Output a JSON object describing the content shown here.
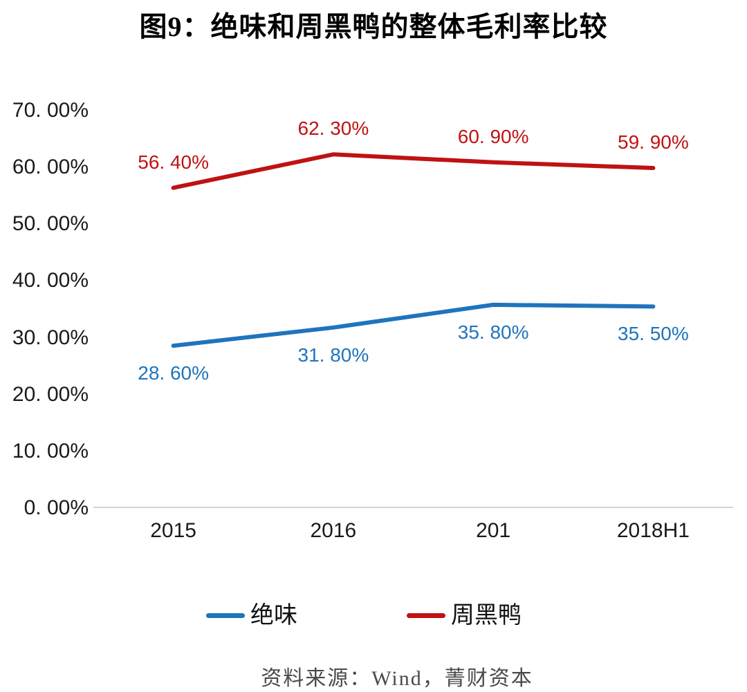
{
  "title": "图9：绝味和周黑鸭的整体毛利率比较",
  "source": "资料来源：Wind，菁财资本",
  "colors": {
    "juewei_blue": "#1F74BC",
    "zhouheiya_red": "#C01212",
    "axis_line": "#D2D2D2",
    "tick_text": "#1A1A1A",
    "source_text": "#4A4A4A"
  },
  "y_axis": {
    "ticks": [
      70,
      60,
      50,
      40,
      30,
      20,
      10,
      0
    ],
    "tick_labels": [
      "70. 00%",
      "60. 00%",
      "50. 00%",
      "40. 00%",
      "30. 00%",
      "20. 00%",
      "10. 00%",
      "0. 00%"
    ]
  },
  "x_axis": {
    "labels": [
      "2015",
      "2016",
      "201",
      "2018H1"
    ]
  },
  "legend": [
    {
      "name": "绝味",
      "color": "#1F74BC"
    },
    {
      "name": "周黑鸭",
      "color": "#C01212"
    }
  ],
  "chart_data": {
    "type": "line",
    "title": "图9：绝味和周黑鸭的整体毛利率比较",
    "categories": [
      "2015",
      "2016",
      "201",
      "2018H1"
    ],
    "series": [
      {
        "name": "绝味",
        "color": "#1F74BC",
        "values": [
          28.6,
          31.8,
          35.8,
          35.5
        ],
        "labels": [
          "28. 60%",
          "31. 80%",
          "35. 80%",
          "35. 50%"
        ],
        "label_side": "below"
      },
      {
        "name": "周黑鸭",
        "color": "#C01212",
        "values": [
          56.4,
          62.3,
          60.9,
          59.9
        ],
        "labels": [
          "56. 40%",
          "62. 30%",
          "60. 90%",
          "59. 90%"
        ],
        "label_side": "above"
      }
    ],
    "ylim": [
      0,
      70
    ],
    "y_tick_step": 10,
    "grid": false,
    "legend_position": "bottom",
    "source": "资料来源：Wind，菁财资本"
  }
}
